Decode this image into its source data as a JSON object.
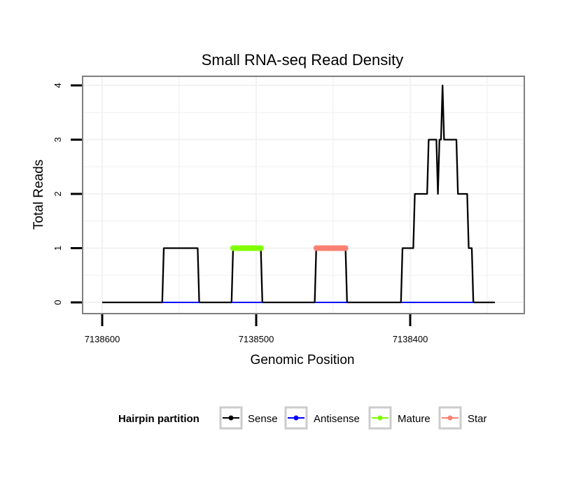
{
  "chart_data": {
    "type": "line",
    "title": "Small RNA-seq Read Density",
    "xlabel": "Genomic Position",
    "ylabel": "Total Reads",
    "x_reversed": true,
    "xlim": [
      7138600,
      7138340
    ],
    "ylim": [
      -0.1,
      4.2
    ],
    "x_ticks": [
      7138600,
      7138500,
      7138400
    ],
    "x_tick_labels": [
      "7138600",
      "7138500",
      "7138400"
    ],
    "y_ticks": [
      0,
      1,
      2,
      3,
      4
    ],
    "y_tick_labels": [
      "0",
      "1",
      "2",
      "3",
      "4"
    ],
    "grid": true,
    "legend": {
      "title": "Hairpin partition",
      "position": "bottom",
      "entries": [
        {
          "name": "Sense",
          "color": "#000000"
        },
        {
          "name": "Antisense",
          "color": "#0000ff"
        },
        {
          "name": "Mature",
          "color": "#7fff00"
        },
        {
          "name": "Star",
          "color": "#fa8072"
        }
      ]
    },
    "series": [
      {
        "name": "Sense",
        "color": "#000000",
        "points": [
          [
            7138600,
            0
          ],
          [
            7138561,
            0
          ],
          [
            7138560,
            1
          ],
          [
            7138538,
            1
          ],
          [
            7138537,
            0
          ],
          [
            7138516,
            0
          ],
          [
            7138515,
            1
          ],
          [
            7138497,
            1
          ],
          [
            7138496,
            0
          ],
          [
            7138462,
            0
          ],
          [
            7138461,
            1
          ],
          [
            7138442,
            1
          ],
          [
            7138441,
            0
          ],
          [
            7138406,
            0
          ],
          [
            7138405,
            1
          ],
          [
            7138398,
            1
          ],
          [
            7138397,
            2
          ],
          [
            7138389,
            2
          ],
          [
            7138388,
            3
          ],
          [
            7138383,
            3
          ],
          [
            7138382,
            2
          ],
          [
            7138381,
            3
          ],
          [
            7138380,
            3
          ],
          [
            7138379,
            4
          ],
          [
            7138378,
            3
          ],
          [
            7138370,
            3
          ],
          [
            7138369,
            2
          ],
          [
            7138363,
            2
          ],
          [
            7138362,
            1
          ],
          [
            7138360,
            1
          ],
          [
            7138359,
            0
          ],
          [
            7138345,
            0
          ]
        ]
      },
      {
        "name": "Antisense",
        "color": "#0000ff",
        "points": [
          [
            7138561,
            0
          ],
          [
            7138537,
            0
          ],
          [
            7138516,
            0
          ],
          [
            7138496,
            0
          ],
          [
            7138462,
            0
          ],
          [
            7138441,
            0
          ],
          [
            7138406,
            0
          ],
          [
            7138359,
            0
          ]
        ]
      },
      {
        "name": "Mature",
        "color": "#7fff00",
        "points": [
          [
            7138515,
            1
          ],
          [
            7138497,
            1
          ]
        ]
      },
      {
        "name": "Star",
        "color": "#fa8072",
        "points": [
          [
            7138461,
            1
          ],
          [
            7138442,
            1
          ]
        ]
      }
    ]
  }
}
